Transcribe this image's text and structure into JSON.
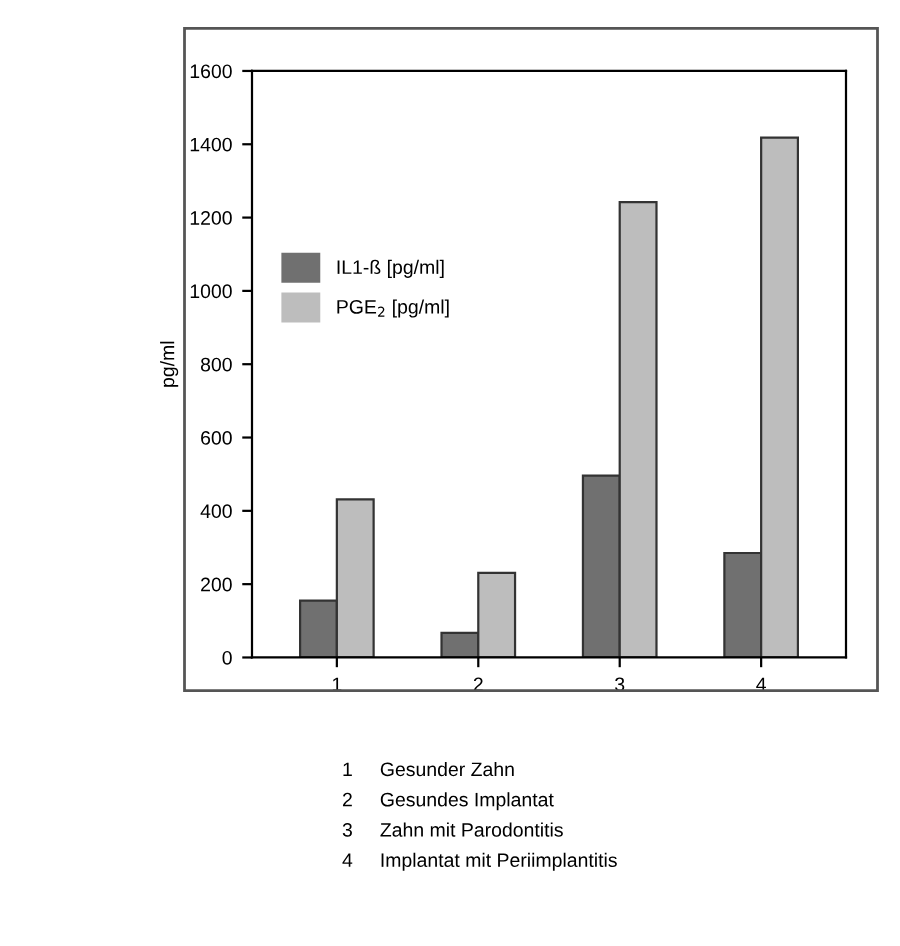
{
  "chart_data": {
    "type": "bar",
    "ylabel": "pg/ml",
    "categories": [
      "1",
      "2",
      "3",
      "4"
    ],
    "series": [
      {
        "name": "IL1-ß [pg/ml]",
        "color": "#707070",
        "values": [
          155,
          67,
          496,
          285
        ]
      },
      {
        "name": "PGE$_{2}$ [pg/ml]",
        "color": "#bdbdbd",
        "values": [
          431,
          231,
          1242,
          1418
        ]
      }
    ],
    "ylim": [
      0,
      1600
    ],
    "yticks": [
      0,
      200,
      400,
      600,
      800,
      1000,
      1200,
      1400,
      1600
    ],
    "grid": false,
    "legend": "upper left",
    "annotations": [
      "1     Gesunder Zahn",
      "2     Gesundes Implantat",
      "3     Zahn mit Parodontitis",
      "4     Implantat mit Periimplantitis"
    ]
  }
}
